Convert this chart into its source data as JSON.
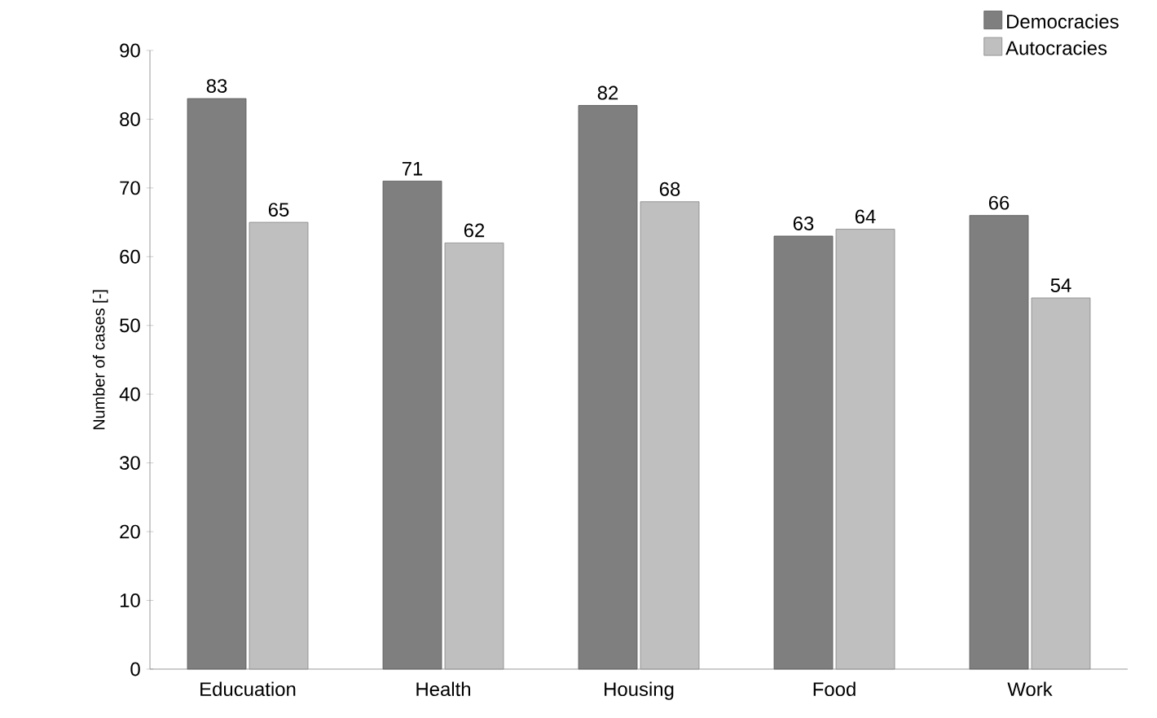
{
  "chart_data": {
    "type": "bar",
    "ylabel": "Number of cases [-]",
    "categories": [
      "Educuation",
      "Health",
      "Housing",
      "Food",
      "Work"
    ],
    "series": [
      {
        "name": "Democracies",
        "color": "#7f7f7f",
        "values": [
          83,
          71,
          82,
          63,
          66
        ]
      },
      {
        "name": "Autocracies",
        "color": "#bfbfbf",
        "values": [
          65,
          62,
          68,
          64,
          54
        ]
      }
    ],
    "ylim": [
      0,
      90
    ],
    "yticks": [
      0,
      10,
      20,
      30,
      40,
      50,
      60,
      70,
      80,
      90
    ],
    "data_labels": true,
    "legend": "top right",
    "grid": false
  }
}
